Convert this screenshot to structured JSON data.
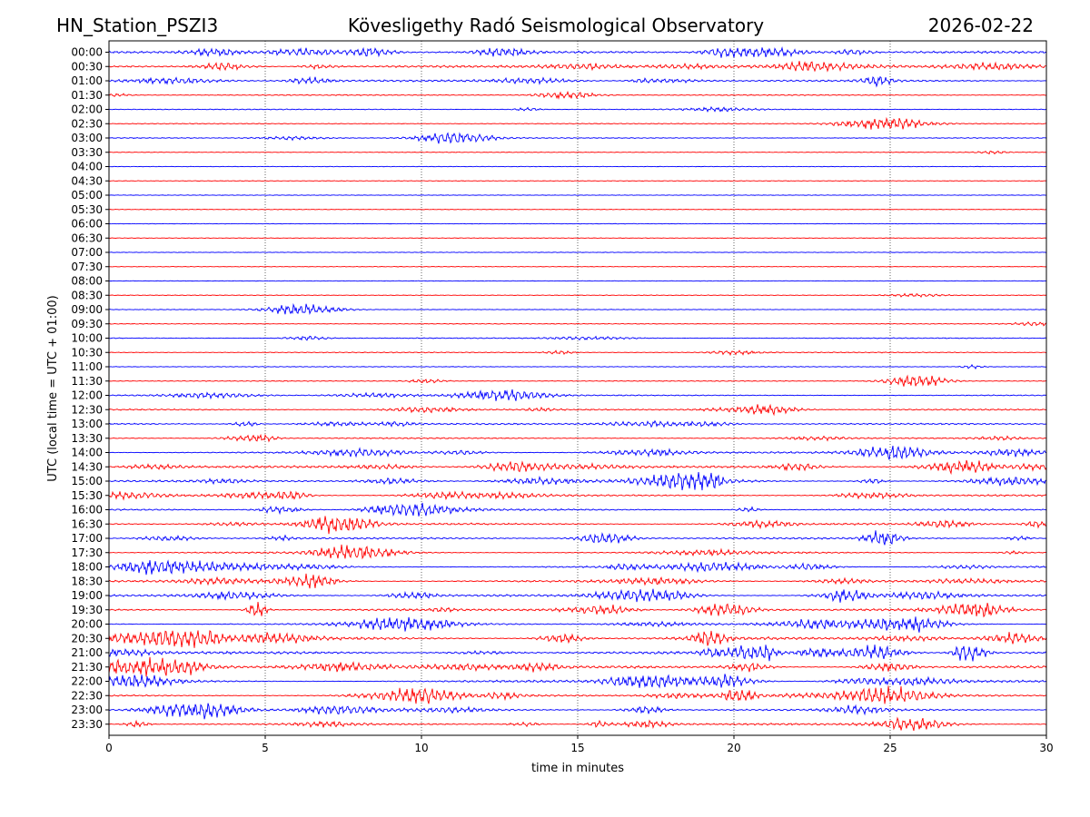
{
  "header": {
    "station": "HN_Station_PSZI3",
    "observatory": "Kövesligethy Radó Seismological Observatory",
    "date": "2026-02-22"
  },
  "chart_data": {
    "type": "line",
    "title": "Kövesligethy Radó Seismological Observatory",
    "xlabel": "time in minutes",
    "ylabel": "UTC (local time = UTC + 01:00)",
    "xlim": [
      0,
      30
    ],
    "x_ticks": [
      "0",
      "5",
      "10",
      "15",
      "20",
      "25",
      "30"
    ],
    "vertical_grid_at": [
      5,
      10,
      15,
      20,
      25
    ],
    "grid": "vertical dotted",
    "trace_colors": [
      "#0000ff",
      "#ff0000"
    ],
    "traces": [
      {
        "label": "00:00",
        "activity": 0.55
      },
      {
        "label": "00:30",
        "activity": 0.6
      },
      {
        "label": "01:00",
        "activity": 0.45
      },
      {
        "label": "01:30",
        "activity": 0.2
      },
      {
        "label": "02:00",
        "activity": 0.15
      },
      {
        "label": "02:30",
        "activity": 0.1
      },
      {
        "label": "03:00",
        "activity": 0.12
      },
      {
        "label": "03:30",
        "activity": 0.04
      },
      {
        "label": "04:00",
        "activity": 0.02
      },
      {
        "label": "04:30",
        "activity": 0.02
      },
      {
        "label": "05:00",
        "activity": 0.02
      },
      {
        "label": "05:30",
        "activity": 0.02
      },
      {
        "label": "06:00",
        "activity": 0.02
      },
      {
        "label": "06:30",
        "activity": 0.02
      },
      {
        "label": "07:00",
        "activity": 0.02
      },
      {
        "label": "07:30",
        "activity": 0.02
      },
      {
        "label": "08:00",
        "activity": 0.02
      },
      {
        "label": "08:30",
        "activity": 0.05
      },
      {
        "label": "09:00",
        "activity": 0.04
      },
      {
        "label": "09:30",
        "activity": 0.08
      },
      {
        "label": "10:00",
        "activity": 0.15
      },
      {
        "label": "10:30",
        "activity": 0.15
      },
      {
        "label": "11:00",
        "activity": 0.08
      },
      {
        "label": "11:30",
        "activity": 0.12
      },
      {
        "label": "12:00",
        "activity": 0.2
      },
      {
        "label": "12:30",
        "activity": 0.3
      },
      {
        "label": "13:00",
        "activity": 0.35
      },
      {
        "label": "13:30",
        "activity": 0.25
      },
      {
        "label": "14:00",
        "activity": 0.45
      },
      {
        "label": "14:30",
        "activity": 0.55
      },
      {
        "label": "15:00",
        "activity": 0.5
      },
      {
        "label": "15:30",
        "activity": 0.4
      },
      {
        "label": "16:00",
        "activity": 0.4
      },
      {
        "label": "16:30",
        "activity": 0.45
      },
      {
        "label": "17:00",
        "activity": 0.45
      },
      {
        "label": "17:30",
        "activity": 0.45
      },
      {
        "label": "18:00",
        "activity": 0.55
      },
      {
        "label": "18:30",
        "activity": 0.5
      },
      {
        "label": "19:00",
        "activity": 0.5
      },
      {
        "label": "19:30",
        "activity": 0.55
      },
      {
        "label": "20:00",
        "activity": 0.6
      },
      {
        "label": "20:30",
        "activity": 0.7
      },
      {
        "label": "21:00",
        "activity": 0.7
      },
      {
        "label": "21:30",
        "activity": 0.65
      },
      {
        "label": "22:00",
        "activity": 0.6
      },
      {
        "label": "22:30",
        "activity": 0.55
      },
      {
        "label": "23:00",
        "activity": 0.55
      },
      {
        "label": "23:30",
        "activity": 0.45
      }
    ]
  }
}
